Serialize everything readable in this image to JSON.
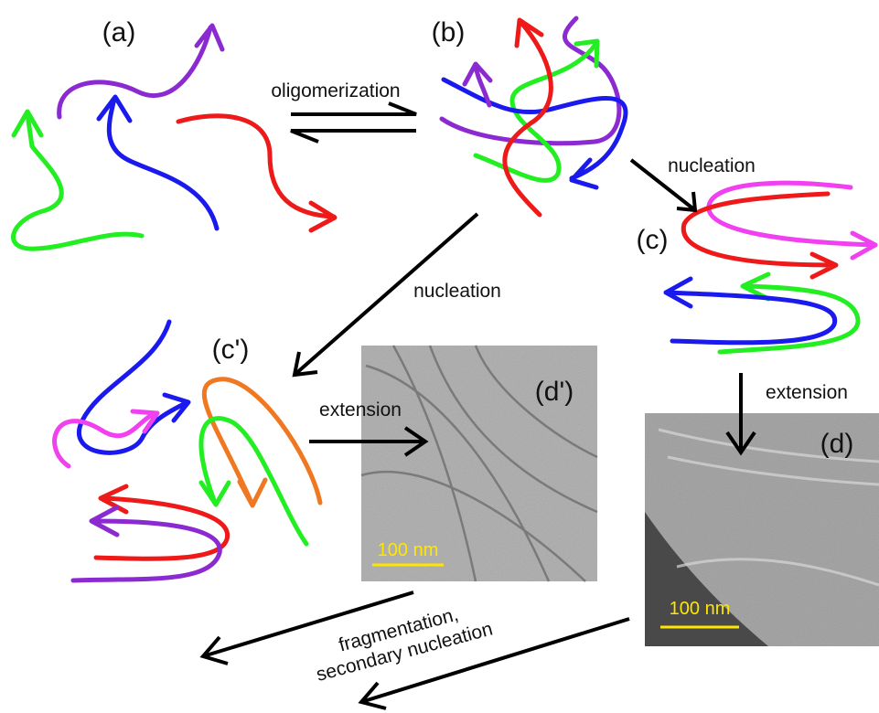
{
  "panels": [
    {
      "label": "(a)"
    },
    {
      "label": "(b)"
    },
    {
      "label": "(c)"
    },
    {
      "label": "(c')"
    },
    {
      "label": "(d)",
      "scale_bar": "100 nm"
    },
    {
      "label": "(d')",
      "scale_bar": "100 nm"
    }
  ],
  "steps": [
    {
      "label": "oligomerization"
    },
    {
      "label": "nucleation"
    },
    {
      "label": "nucleation"
    },
    {
      "label": "extension"
    },
    {
      "label": "extension"
    },
    {
      "label": [
        "fragmentation,",
        "secondary nucleation"
      ]
    }
  ]
}
